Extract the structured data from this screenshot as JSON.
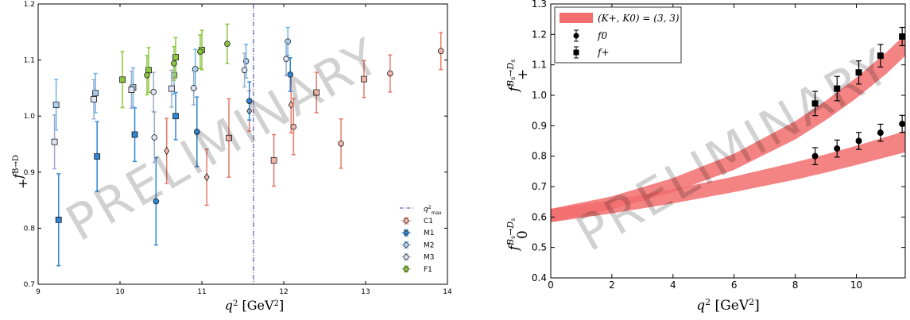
{
  "watermark": "PRELIMINARY",
  "chart_data": [
    {
      "type": "scatter",
      "xlabel": "q² [GeV²]",
      "ylabel": "f₊^{B→D}",
      "xlim": [
        9,
        14
      ],
      "ylim": [
        0.7,
        1.2
      ],
      "xticks": [
        "9",
        "10",
        "11",
        "12",
        "13",
        "14"
      ],
      "yticks": [
        "0.7",
        "0.8",
        "0.9",
        "1.0",
        "1.1",
        "1.2"
      ],
      "vline": {
        "x": 11.63,
        "label": "q²max"
      },
      "legend_position": "lower-right",
      "legend": [
        "C1",
        "M1",
        "M2",
        "M3",
        "F1"
      ],
      "series": [
        {
          "name": "C1",
          "color": "#e8796b",
          "face": "#f2b5aa",
          "points": [
            {
              "x": 10.57,
              "y": 0.938,
              "err": 0.058,
              "m": "d"
            },
            {
              "x": 11.06,
              "y": 0.891,
              "err": 0.05,
              "m": "d"
            },
            {
              "x": 11.58,
              "y": 1.009,
              "err": 0.036,
              "m": "d"
            },
            {
              "x": 12.09,
              "y": 1.02,
              "err": 0.05,
              "m": "d"
            },
            {
              "x": 11.33,
              "y": 0.961,
              "err": 0.07,
              "m": "s"
            },
            {
              "x": 11.88,
              "y": 0.921,
              "err": 0.046,
              "m": "s"
            },
            {
              "x": 12.4,
              "y": 1.042,
              "err": 0.036,
              "m": "s"
            },
            {
              "x": 12.98,
              "y": 1.066,
              "err": 0.033,
              "m": "s"
            },
            {
              "x": 12.12,
              "y": 0.981,
              "err": 0.05,
              "m": "o"
            },
            {
              "x": 12.7,
              "y": 0.951,
              "err": 0.044,
              "m": "o"
            },
            {
              "x": 13.3,
              "y": 1.076,
              "err": 0.033,
              "m": "o"
            },
            {
              "x": 13.92,
              "y": 1.116,
              "err": 0.033,
              "m": "o"
            }
          ]
        },
        {
          "name": "M1",
          "color": "#2e86d4",
          "face": "#2e86d4",
          "points": [
            {
              "x": 9.25,
              "y": 0.815,
              "err": 0.082,
              "m": "s"
            },
            {
              "x": 9.72,
              "y": 0.928,
              "err": 0.062,
              "m": "s"
            },
            {
              "x": 10.18,
              "y": 0.967,
              "err": 0.048,
              "m": "s"
            },
            {
              "x": 10.68,
              "y": 1.0,
              "err": 0.042,
              "m": "s"
            },
            {
              "x": 10.44,
              "y": 0.848,
              "err": 0.078,
              "m": "o"
            },
            {
              "x": 10.94,
              "y": 0.972,
              "err": 0.062,
              "m": "o"
            },
            {
              "x": 11.58,
              "y": 1.027,
              "err": 0.034,
              "m": "o"
            },
            {
              "x": 12.08,
              "y": 1.074,
              "err": 0.03,
              "m": "o"
            }
          ]
        },
        {
          "name": "M2",
          "color": "#6eb3e6",
          "face": "#a9d3f2",
          "points": [
            {
              "x": 9.22,
              "y": 1.02,
              "err": 0.045,
              "m": "s"
            },
            {
              "x": 9.7,
              "y": 1.041,
              "err": 0.035,
              "m": "s"
            },
            {
              "x": 10.16,
              "y": 1.051,
              "err": 0.035,
              "m": "s"
            },
            {
              "x": 10.66,
              "y": 1.073,
              "err": 0.034,
              "m": "s"
            },
            {
              "x": 10.92,
              "y": 1.084,
              "err": 0.035,
              "m": "o"
            },
            {
              "x": 11.54,
              "y": 1.098,
              "err": 0.03,
              "m": "o"
            },
            {
              "x": 12.05,
              "y": 1.133,
              "err": 0.025,
              "m": "o"
            }
          ]
        },
        {
          "name": "M3",
          "color": "#9aaad0",
          "face": "#dfe4f4",
          "points": [
            {
              "x": 9.2,
              "y": 0.954,
              "err": 0.048,
              "m": "s"
            },
            {
              "x": 9.68,
              "y": 1.03,
              "err": 0.035,
              "m": "s"
            },
            {
              "x": 10.14,
              "y": 1.047,
              "err": 0.033,
              "m": "s"
            },
            {
              "x": 10.63,
              "y": 1.049,
              "err": 0.033,
              "m": "s"
            },
            {
              "x": 10.42,
              "y": 0.962,
              "err": 0.045,
              "m": "o"
            },
            {
              "x": 10.41,
              "y": 1.043,
              "err": 0.035,
              "m": "o"
            },
            {
              "x": 10.9,
              "y": 1.05,
              "err": 0.03,
              "m": "o"
            },
            {
              "x": 11.52,
              "y": 1.082,
              "err": 0.03,
              "m": "o"
            },
            {
              "x": 12.03,
              "y": 1.102,
              "err": 0.03,
              "m": "o"
            }
          ]
        },
        {
          "name": "F1",
          "color": "#8dc63f",
          "face": "#8dc63f",
          "points": [
            {
              "x": 10.03,
              "y": 1.065,
              "err": 0.05,
              "m": "s"
            },
            {
              "x": 10.35,
              "y": 1.082,
              "err": 0.04,
              "m": "s"
            },
            {
              "x": 10.68,
              "y": 1.105,
              "err": 0.035,
              "m": "s"
            },
            {
              "x": 11.0,
              "y": 1.118,
              "err": 0.035,
              "m": "s"
            },
            {
              "x": 10.33,
              "y": 1.073,
              "err": 0.035,
              "m": "o"
            },
            {
              "x": 10.66,
              "y": 1.094,
              "err": 0.03,
              "m": "o"
            },
            {
              "x": 10.98,
              "y": 1.115,
              "err": 0.03,
              "m": "o"
            },
            {
              "x": 11.31,
              "y": 1.129,
              "err": 0.035,
              "m": "o"
            }
          ]
        }
      ]
    },
    {
      "type": "scatter",
      "xlabel": "q² [GeV²]",
      "ylabel_top": "f₊^{Bs→Ds}",
      "ylabel_bottom": "f₀^{Bs→Ds}",
      "xlim": [
        0,
        11.6
      ],
      "ylim": [
        0.4,
        1.3
      ],
      "xticks": [
        "0",
        "2",
        "4",
        "6",
        "8",
        "10"
      ],
      "yticks": [
        "0.4",
        "0.5",
        "0.6",
        "0.7",
        "0.8",
        "0.9",
        "1.0",
        "1.1",
        "1.2",
        "1.3"
      ],
      "legend_position": "top-left",
      "band_color": "#f26d6d",
      "legend": [
        "(K+, K0) = (3, 3)",
        "f0",
        "f+"
      ],
      "bands": [
        {
          "name": "fplus-band",
          "x": [
            0,
            2,
            4,
            6,
            8,
            9,
            10,
            11,
            11.6
          ],
          "lo": [
            0.583,
            0.625,
            0.682,
            0.755,
            0.855,
            0.918,
            0.99,
            1.072,
            1.13
          ],
          "hi": [
            0.627,
            0.668,
            0.728,
            0.808,
            0.915,
            0.982,
            1.058,
            1.143,
            1.2
          ]
        },
        {
          "name": "fzero-band",
          "x": [
            0,
            2,
            4,
            6,
            8,
            9,
            10,
            11,
            11.6
          ],
          "lo": [
            0.583,
            0.612,
            0.645,
            0.682,
            0.723,
            0.746,
            0.771,
            0.797,
            0.813
          ],
          "hi": [
            0.627,
            0.656,
            0.692,
            0.733,
            0.78,
            0.806,
            0.834,
            0.864,
            0.883
          ]
        }
      ],
      "series": [
        {
          "name": "f0",
          "marker": "circle",
          "x": [
            8.65,
            9.37,
            10.08,
            10.79,
            11.5
          ],
          "y": [
            0.8,
            0.825,
            0.85,
            0.877,
            0.906
          ],
          "err": [
            0.028,
            0.028,
            0.028,
            0.028,
            0.028
          ]
        },
        {
          "name": "f+",
          "marker": "square",
          "x": [
            8.65,
            9.37,
            10.08,
            10.79,
            11.5
          ],
          "y": [
            0.973,
            1.022,
            1.075,
            1.13,
            1.193
          ],
          "err": [
            0.04,
            0.04,
            0.038,
            0.037,
            0.03
          ]
        }
      ]
    }
  ]
}
